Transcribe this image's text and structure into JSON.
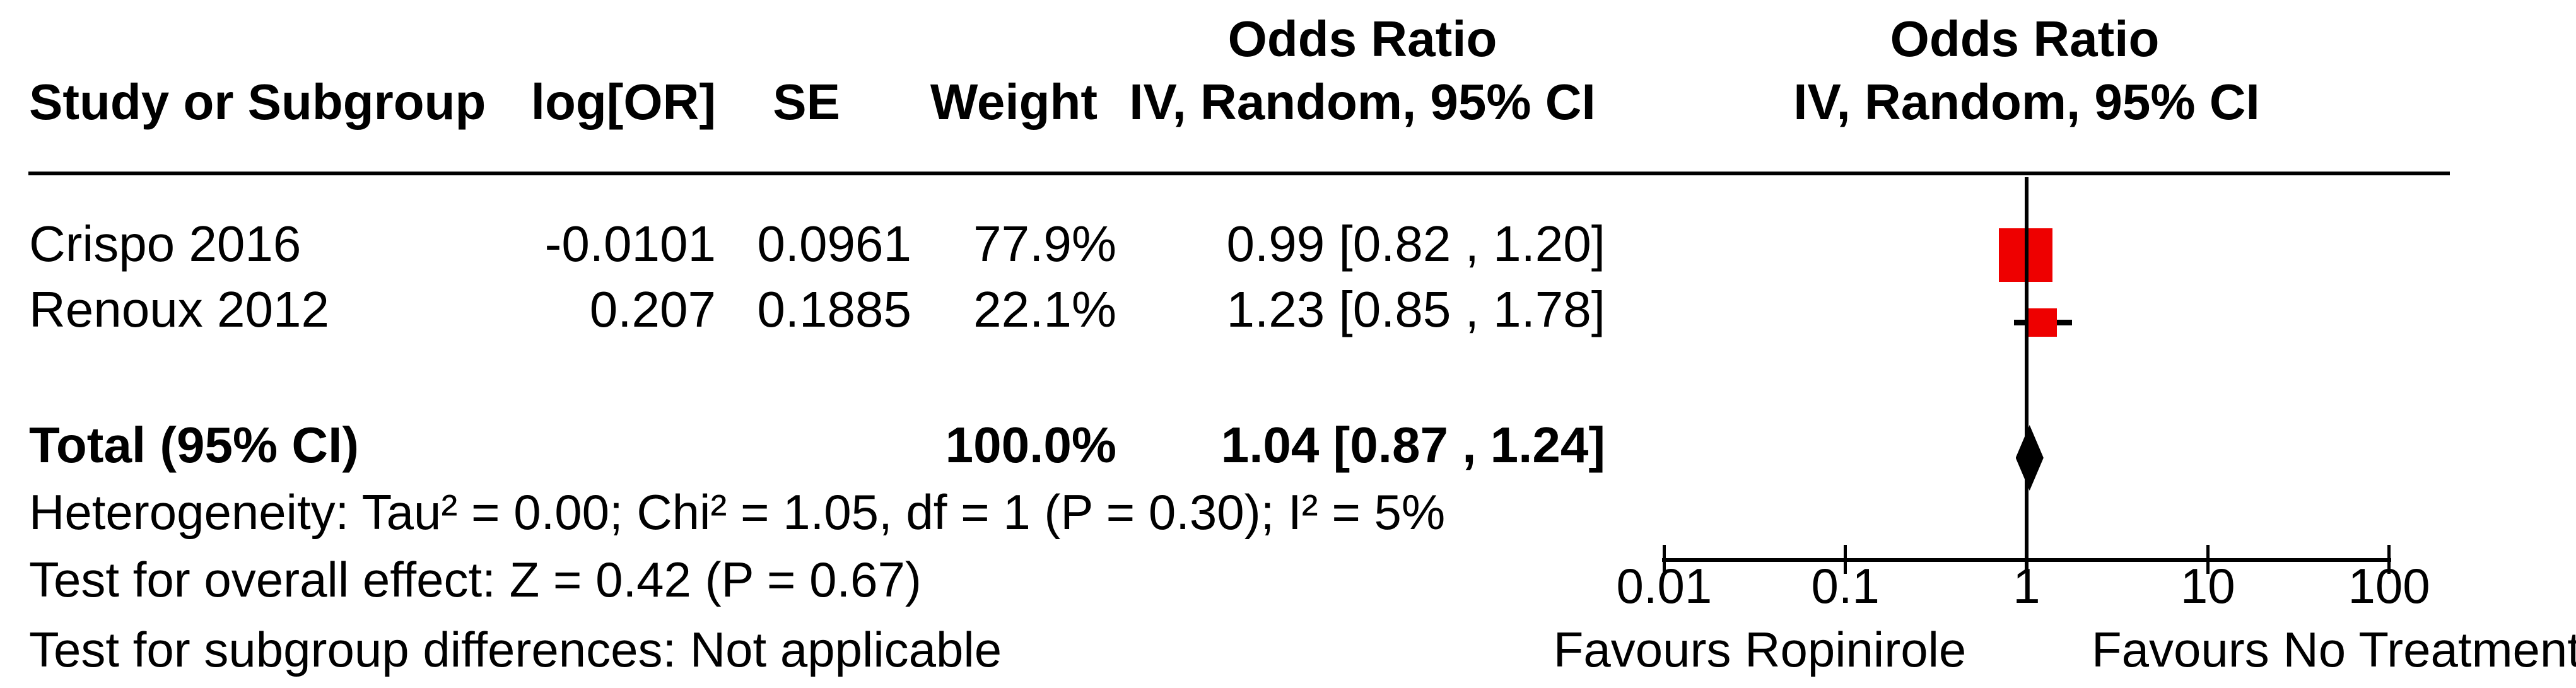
{
  "header": {
    "or_title_left": "Odds Ratio",
    "or_title_right": "Odds Ratio",
    "col_study": "Study or Subgroup",
    "col_log_or": "log[OR]",
    "col_se": "SE",
    "col_weight": "Weight",
    "col_or_ci_left": "IV, Random, 95% CI",
    "col_or_ci_right": "IV, Random, 95% CI"
  },
  "table": {
    "rows": [
      {
        "study": "Crispo 2016",
        "log_or": "-0.0101",
        "se": "0.0961",
        "weight": "77.9%",
        "or_ci": "0.99 [0.82 , 1.20]"
      },
      {
        "study": "Renoux 2012",
        "log_or": "0.207",
        "se": "0.1885",
        "weight": "22.1%",
        "or_ci": "1.23 [0.85 , 1.78]"
      }
    ],
    "total": {
      "label": "Total (95% CI)",
      "weight": "100.0%",
      "or_ci": "1.04 [0.87 , 1.24]"
    }
  },
  "stats": {
    "heterogeneity": "Heterogeneity: Tau² = 0.00; Chi² = 1.05, df = 1 (P = 0.30); I² = 5%",
    "overall_effect": "Test for overall effect: Z = 0.42 (P = 0.67)",
    "subgroup_differences": "Test for subgroup differences: Not applicable"
  },
  "axis": {
    "tick_labels": [
      "0.01",
      "0.1",
      "1",
      "10",
      "100"
    ],
    "left_label": "Favours Ropinirole",
    "right_label": "Favours No Treatment"
  },
  "colors": {
    "marker_red": "#ee0000",
    "line_black": "#000000"
  },
  "chart_data": {
    "type": "forest",
    "effect_measure": "Odds Ratio",
    "model": "IV, Random, 95% CI",
    "x_axis": {
      "scale": "log",
      "ticks": [
        0.01,
        0.1,
        1,
        10,
        100
      ],
      "left_label": "Favours Ropinirole",
      "right_label": "Favours No Treatment"
    },
    "studies": [
      {
        "name": "Crispo 2016",
        "log_or": -0.0101,
        "se": 0.0961,
        "weight_pct": 77.9,
        "or": 0.99,
        "ci_low": 0.82,
        "ci_high": 1.2
      },
      {
        "name": "Renoux 2012",
        "log_or": 0.207,
        "se": 0.1885,
        "weight_pct": 22.1,
        "or": 1.23,
        "ci_low": 0.85,
        "ci_high": 1.78
      }
    ],
    "total": {
      "label": "Total (95% CI)",
      "or": 1.04,
      "ci_low": 0.87,
      "ci_high": 1.24,
      "weight_pct": 100.0
    },
    "heterogeneity": {
      "tau2": 0.0,
      "chi2": 1.05,
      "df": 1,
      "p": 0.3,
      "i2_pct": 5
    },
    "overall_effect": {
      "z": 0.42,
      "p": 0.67
    }
  }
}
